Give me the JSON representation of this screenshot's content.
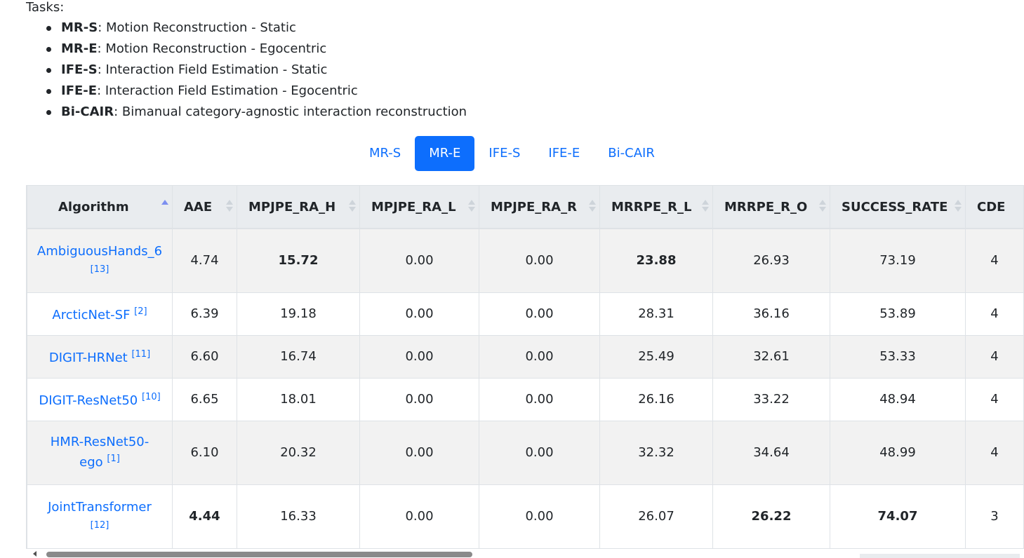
{
  "tasks": {
    "title": "Tasks:",
    "items": [
      {
        "code": "MR-S",
        "desc": ": Motion Reconstruction - Static"
      },
      {
        "code": "MR-E",
        "desc": ": Motion Reconstruction - Egocentric"
      },
      {
        "code": "IFE-S",
        "desc": ": Interaction Field Estimation - Static"
      },
      {
        "code": "IFE-E",
        "desc": ": Interaction Field Estimation - Egocentric"
      },
      {
        "code": "Bi-CAIR",
        "desc": ": Bimanual category-agnostic interaction reconstruction"
      }
    ]
  },
  "tabs": [
    {
      "label": "MR-S",
      "active": false
    },
    {
      "label": "MR-E",
      "active": true
    },
    {
      "label": "IFE-S",
      "active": false
    },
    {
      "label": "IFE-E",
      "active": false
    },
    {
      "label": "Bi-CAIR",
      "active": false
    }
  ],
  "table": {
    "headers": [
      "Algorithm",
      "AAE",
      "MPJPE_RA_H",
      "MPJPE_RA_L",
      "MPJPE_RA_R",
      "MRRPE_R_L",
      "MRRPE_R_O",
      "SUCCESS_RATE",
      "CDE"
    ],
    "sort": {
      "column": "Algorithm",
      "direction": "asc"
    },
    "rows": [
      {
        "name_line1": "AmbiguousHands_6",
        "name_line2": "",
        "ref": "[13]",
        "ref_inline": false,
        "values": [
          "4.74",
          "15.72",
          "0.00",
          "0.00",
          "23.88",
          "26.93",
          "73.19",
          "4"
        ],
        "bold": [
          false,
          true,
          false,
          false,
          true,
          false,
          false,
          false
        ]
      },
      {
        "name_line1": "ArcticNet-SF",
        "name_line2": "",
        "ref": "[2]",
        "ref_inline": true,
        "values": [
          "6.39",
          "19.18",
          "0.00",
          "0.00",
          "28.31",
          "36.16",
          "53.89",
          "4"
        ],
        "bold": [
          false,
          false,
          false,
          false,
          false,
          false,
          false,
          false
        ]
      },
      {
        "name_line1": "DIGIT-HRNet",
        "name_line2": "",
        "ref": "[11]",
        "ref_inline": true,
        "values": [
          "6.60",
          "16.74",
          "0.00",
          "0.00",
          "25.49",
          "32.61",
          "53.33",
          "4"
        ],
        "bold": [
          false,
          false,
          false,
          false,
          false,
          false,
          false,
          false
        ]
      },
      {
        "name_line1": "DIGIT-ResNet50",
        "name_line2": "",
        "ref": "[10]",
        "ref_inline": true,
        "values": [
          "6.65",
          "18.01",
          "0.00",
          "0.00",
          "26.16",
          "33.22",
          "48.94",
          "4"
        ],
        "bold": [
          false,
          false,
          false,
          false,
          false,
          false,
          false,
          false
        ]
      },
      {
        "name_line1": "HMR-ResNet50-",
        "name_line2": "ego",
        "ref": "[1]",
        "ref_inline": true,
        "values": [
          "6.10",
          "20.32",
          "0.00",
          "0.00",
          "32.32",
          "34.64",
          "48.99",
          "4"
        ],
        "bold": [
          false,
          false,
          false,
          false,
          false,
          false,
          false,
          false
        ]
      },
      {
        "name_line1": "JointTransformer",
        "name_line2": "",
        "ref": "[12]",
        "ref_inline": false,
        "values": [
          "4.44",
          "16.33",
          "0.00",
          "0.00",
          "26.07",
          "26.22",
          "74.07",
          "3"
        ],
        "bold": [
          true,
          false,
          false,
          false,
          false,
          true,
          true,
          false
        ]
      }
    ]
  },
  "colors": {
    "accent": "#0d6efd",
    "header_bg": "#e9ecef",
    "stripe": "#f2f2f2"
  }
}
